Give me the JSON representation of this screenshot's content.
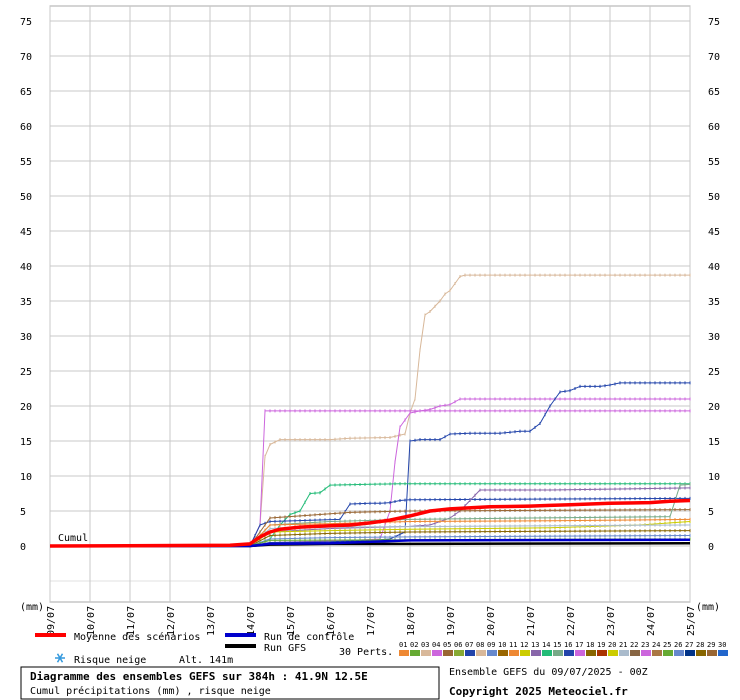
{
  "chart_data": {
    "type": "line",
    "title": "Diagramme des ensembles GEFS sur 384h : 41.9N 12.5E",
    "subtitle": "Cumul précipitations (mm) , risque neige",
    "ylabel": "(mm)",
    "cumul_label": "Cumul",
    "ylim": [
      -8,
      76
    ],
    "yticks": [
      0,
      5,
      10,
      15,
      20,
      25,
      30,
      35,
      40,
      45,
      50,
      55,
      60,
      65,
      70,
      75
    ],
    "xlim": [
      0,
      128
    ],
    "xticks": [
      "09/07",
      "10/07",
      "11/07",
      "12/07",
      "13/07",
      "14/07",
      "15/07",
      "16/07",
      "17/07",
      "18/07",
      "19/07",
      "20/07",
      "21/07",
      "22/07",
      "23/07",
      "24/07",
      "25/07"
    ],
    "x_unit_note": "6-hour steps from 09/07 00Z",
    "grid": true,
    "series": [
      {
        "name": "Moyenne des scénarios",
        "color": "#ff0000",
        "width": 3.5,
        "points": [
          [
            0,
            0
          ],
          [
            36,
            0.1
          ],
          [
            40,
            0.3
          ],
          [
            42,
            1.3
          ],
          [
            44,
            2
          ],
          [
            46,
            2.4
          ],
          [
            50,
            2.7
          ],
          [
            56,
            2.9
          ],
          [
            60,
            3
          ],
          [
            64,
            3.3
          ],
          [
            68,
            3.7
          ],
          [
            72,
            4.3
          ],
          [
            76,
            5
          ],
          [
            80,
            5.3
          ],
          [
            88,
            5.6
          ],
          [
            96,
            5.7
          ],
          [
            100,
            5.8
          ],
          [
            104,
            5.9
          ],
          [
            112,
            6.1
          ],
          [
            120,
            6.2
          ],
          [
            124,
            6.4
          ],
          [
            128,
            6.5
          ]
        ]
      },
      {
        "name": "Run de contrôle",
        "color": "#0000cc",
        "width": 2.5,
        "points": [
          [
            0,
            0
          ],
          [
            40,
            0
          ],
          [
            44,
            0.3
          ],
          [
            56,
            0.4
          ],
          [
            72,
            0.8
          ],
          [
            128,
            0.9
          ]
        ]
      },
      {
        "name": "Run GFS",
        "color": "#000000",
        "width": 2.5,
        "points": [
          [
            0,
            0
          ],
          [
            40,
            0
          ],
          [
            44,
            0.2
          ],
          [
            56,
            0.3
          ],
          [
            72,
            0.3
          ],
          [
            128,
            0.4
          ]
        ]
      },
      {
        "name": "03",
        "color": "#d8b89a",
        "width": 1,
        "points": [
          [
            0,
            0
          ],
          [
            40,
            0
          ],
          [
            42,
            3
          ],
          [
            43,
            12.8
          ],
          [
            44,
            14.5
          ],
          [
            46,
            15.2
          ],
          [
            56,
            15.2
          ],
          [
            60,
            15.4
          ],
          [
            68,
            15.5
          ],
          [
            71,
            16
          ],
          [
            72,
            19
          ],
          [
            73,
            21
          ],
          [
            74,
            28
          ],
          [
            75,
            33
          ],
          [
            76,
            33.5
          ],
          [
            78,
            35
          ],
          [
            79,
            36
          ],
          [
            80,
            36.5
          ],
          [
            82,
            38.5
          ],
          [
            83,
            38.7
          ],
          [
            128,
            38.7
          ]
        ]
      },
      {
        "name": "04",
        "color": "#cc66dd",
        "width": 1,
        "points": [
          [
            0,
            0
          ],
          [
            40,
            0
          ],
          [
            42,
            3
          ],
          [
            43,
            19.3
          ],
          [
            128,
            19.3
          ]
        ]
      },
      {
        "name": "05",
        "color": "#cc66dd",
        "width": 1,
        "points": [
          [
            0,
            0
          ],
          [
            40,
            0
          ],
          [
            44,
            0.5
          ],
          [
            60,
            0.8
          ],
          [
            66,
            1
          ],
          [
            68,
            5
          ],
          [
            69,
            12
          ],
          [
            70,
            17
          ],
          [
            72,
            19
          ],
          [
            74,
            19.3
          ],
          [
            76,
            19.5
          ],
          [
            78,
            20
          ],
          [
            80,
            20.2
          ],
          [
            82,
            21
          ],
          [
            128,
            21
          ]
        ]
      },
      {
        "name": "07",
        "color": "#2244aa",
        "width": 1,
        "points": [
          [
            0,
            0
          ],
          [
            40,
            0
          ],
          [
            44,
            0.5
          ],
          [
            56,
            0.6
          ],
          [
            64,
            0.8
          ],
          [
            68,
            1
          ],
          [
            71,
            2
          ],
          [
            72,
            15
          ],
          [
            74,
            15.2
          ],
          [
            78,
            15.2
          ],
          [
            80,
            16
          ],
          [
            84,
            16.1
          ],
          [
            90,
            16.1
          ],
          [
            94,
            16.4
          ],
          [
            96,
            16.4
          ],
          [
            98,
            17.5
          ],
          [
            100,
            20
          ],
          [
            102,
            22
          ],
          [
            104,
            22.2
          ],
          [
            106,
            22.8
          ],
          [
            110,
            22.8
          ],
          [
            112,
            23
          ],
          [
            114,
            23.3
          ],
          [
            128,
            23.3
          ]
        ]
      },
      {
        "name": "14",
        "color": "#22bb77",
        "width": 1,
        "points": [
          [
            0,
            0
          ],
          [
            40,
            0
          ],
          [
            44,
            1
          ],
          [
            46,
            3
          ],
          [
            48,
            4.5
          ],
          [
            50,
            5
          ],
          [
            52,
            7.5
          ],
          [
            54,
            7.6
          ],
          [
            56,
            8.7
          ],
          [
            70,
            8.9
          ],
          [
            128,
            8.9
          ]
        ]
      },
      {
        "name": "08",
        "color": "#2244aa",
        "width": 1,
        "points": [
          [
            0,
            0
          ],
          [
            40,
            0
          ],
          [
            42,
            3
          ],
          [
            44,
            3.5
          ],
          [
            58,
            3.8
          ],
          [
            60,
            6
          ],
          [
            64,
            6.1
          ],
          [
            66,
            6.1
          ],
          [
            68,
            6.2
          ],
          [
            70,
            6.5
          ],
          [
            72,
            6.6
          ],
          [
            128,
            6.8
          ]
        ]
      },
      {
        "name": "13",
        "color": "#8866aa",
        "width": 1,
        "points": [
          [
            0,
            0
          ],
          [
            40,
            0
          ],
          [
            44,
            2
          ],
          [
            56,
            2.5
          ],
          [
            72,
            2.8
          ],
          [
            76,
            3
          ],
          [
            80,
            4
          ],
          [
            82,
            5
          ],
          [
            84,
            6.5
          ],
          [
            86,
            8
          ],
          [
            96,
            8
          ],
          [
            100,
            8
          ],
          [
            128,
            8.3
          ]
        ]
      },
      {
        "name": "29",
        "color": "#996633",
        "width": 1,
        "points": [
          [
            0,
            0
          ],
          [
            40,
            0
          ],
          [
            44,
            4
          ],
          [
            60,
            4.8
          ],
          [
            72,
            5
          ],
          [
            128,
            5.2
          ]
        ]
      },
      {
        "name": "15",
        "color": "#77aa88",
        "width": 1,
        "points": [
          [
            0,
            0
          ],
          [
            40,
            0
          ],
          [
            44,
            3
          ],
          [
            56,
            3.5
          ],
          [
            72,
            3.8
          ],
          [
            96,
            4
          ],
          [
            124,
            4.2
          ],
          [
            126,
            8.7
          ],
          [
            128,
            8.8
          ]
        ]
      },
      {
        "name": "12",
        "color": "#cccc00",
        "width": 1,
        "points": [
          [
            0,
            0
          ],
          [
            40,
            0
          ],
          [
            44,
            2
          ],
          [
            56,
            2.2
          ],
          [
            72,
            2.4
          ],
          [
            100,
            2.6
          ],
          [
            118,
            3
          ],
          [
            128,
            3.5
          ]
        ]
      },
      {
        "name": "11",
        "color": "#ee8833",
        "width": 1,
        "points": [
          [
            0,
            0
          ],
          [
            40,
            0
          ],
          [
            44,
            3
          ],
          [
            56,
            3.2
          ],
          [
            72,
            3.5
          ],
          [
            100,
            3.6
          ],
          [
            128,
            3.8
          ]
        ]
      },
      {
        "name": "18",
        "color": "#886600",
        "width": 1,
        "points": [
          [
            0,
            0
          ],
          [
            40,
            0
          ],
          [
            44,
            1.5
          ],
          [
            56,
            1.8
          ],
          [
            72,
            2
          ],
          [
            128,
            2.2
          ]
        ]
      },
      {
        "name": "21",
        "color": "#aabbcc",
        "width": 1,
        "points": [
          [
            0,
            0
          ],
          [
            40,
            0
          ],
          [
            44,
            2.5
          ],
          [
            56,
            2.7
          ],
          [
            80,
            2.8
          ],
          [
            100,
            2.9
          ],
          [
            128,
            3.0
          ]
        ]
      },
      {
        "name": "26",
        "color": "#6688cc",
        "width": 1,
        "points": [
          [
            0,
            0
          ],
          [
            40,
            0
          ],
          [
            44,
            1
          ],
          [
            56,
            1.2
          ],
          [
            72,
            1.3
          ],
          [
            128,
            1.5
          ]
        ]
      },
      {
        "name": "02",
        "color": "#66aa33",
        "width": 1,
        "points": [
          [
            0,
            0
          ],
          [
            40,
            0
          ],
          [
            44,
            0.8
          ],
          [
            72,
            0.9
          ],
          [
            128,
            1
          ]
        ]
      }
    ],
    "legend": [
      {
        "label": "Moyenne des scénarios",
        "color": "#ff0000"
      },
      {
        "label": "Run de contrôle",
        "color": "#0000cc"
      },
      {
        "label": "Run GFS",
        "color": "#000000"
      }
    ],
    "snow_label": "Risque neige",
    "altitude_label": "Alt. 141m",
    "perts_label": "30 Perts.",
    "perts": [
      {
        "id": "01",
        "color": "#ee8833"
      },
      {
        "id": "02",
        "color": "#66aa33"
      },
      {
        "id": "03",
        "color": "#d8b89a"
      },
      {
        "id": "04",
        "color": "#cc66dd"
      },
      {
        "id": "05",
        "color": "#996633"
      },
      {
        "id": "06",
        "color": "#88aa33"
      },
      {
        "id": "07",
        "color": "#2244aa"
      },
      {
        "id": "08",
        "color": "#d8b89a"
      },
      {
        "id": "09",
        "color": "#6688cc"
      },
      {
        "id": "10",
        "color": "#996600"
      },
      {
        "id": "11",
        "color": "#ee8833"
      },
      {
        "id": "12",
        "color": "#cccc00"
      },
      {
        "id": "13",
        "color": "#8866aa"
      },
      {
        "id": "14",
        "color": "#22bb77"
      },
      {
        "id": "15",
        "color": "#77aa88"
      },
      {
        "id": "16",
        "color": "#2244aa"
      },
      {
        "id": "17",
        "color": "#cc66dd"
      },
      {
        "id": "18",
        "color": "#886600"
      },
      {
        "id": "19",
        "color": "#aa3300"
      },
      {
        "id": "20",
        "color": "#cccc00"
      },
      {
        "id": "21",
        "color": "#aabbcc"
      },
      {
        "id": "22",
        "color": "#886644"
      },
      {
        "id": "23",
        "color": "#cc66dd"
      },
      {
        "id": "24",
        "color": "#aa7744"
      },
      {
        "id": "25",
        "color": "#66aa33"
      },
      {
        "id": "26",
        "color": "#6688cc"
      },
      {
        "id": "27",
        "color": "#003388"
      },
      {
        "id": "28",
        "color": "#886600"
      },
      {
        "id": "29",
        "color": "#996633"
      },
      {
        "id": "30",
        "color": "#2266cc"
      }
    ],
    "ensemble_label": "Ensemble GEFS du 09/07/2025 - 00Z",
    "copyright": "Copyright 2025 Meteociel.fr"
  }
}
